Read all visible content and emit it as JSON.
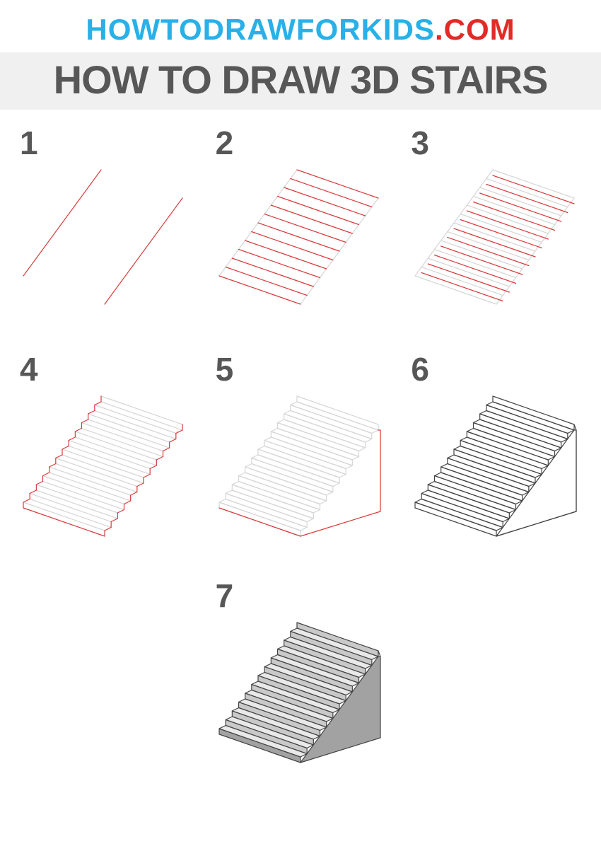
{
  "logo": {
    "part1": "HOWTODRAWFORKIDS",
    "part2": ".COM",
    "color1": "#29b0e8",
    "color2": "#e22b26",
    "fontsize": 42
  },
  "title": {
    "text": "HOW TO DRAW 3D STAIRS",
    "color": "#575757",
    "fontsize": 56,
    "bg": "#f0f0f0"
  },
  "step_label": {
    "color": "#575757",
    "fontsize": 46
  },
  "diagram": {
    "guide_color": "#d6d6d6",
    "new_color": "#d93a3a",
    "final_stroke": "#444444",
    "shade_light": "#e9e9e9",
    "shade_mid": "#c9c9c9",
    "shade_dark": "#a2a2a2",
    "bg": "#ffffff",
    "stroke_width": 1.2
  },
  "steps": [
    {
      "label": "1"
    },
    {
      "label": "2"
    },
    {
      "label": "3"
    },
    {
      "label": "4"
    },
    {
      "label": "5"
    },
    {
      "label": "6"
    },
    {
      "label": "7"
    }
  ]
}
